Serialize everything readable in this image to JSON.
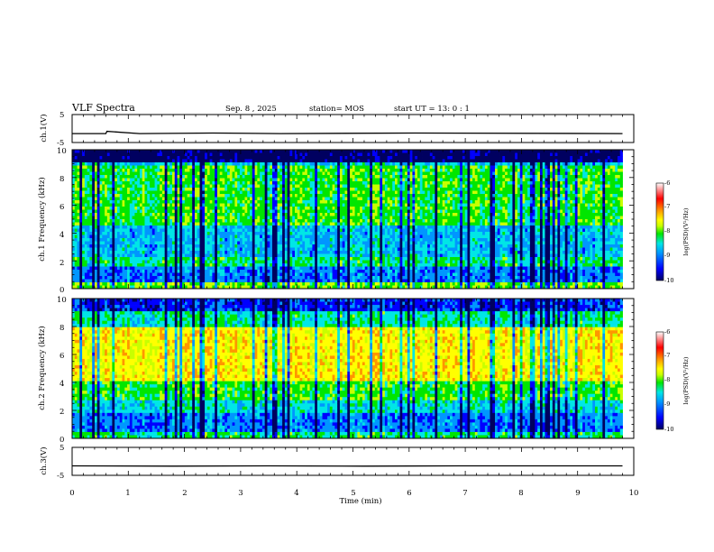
{
  "header": {
    "title": "VLF Spectra",
    "date": "Sep. 8 , 2025",
    "station": "station= MOS",
    "start": "start UT = 13: 0 : 1"
  },
  "chart_data": [
    {
      "type": "line",
      "ylabel": "ch.1(V)",
      "ylim": [
        -5,
        5
      ],
      "yticks": [
        "5",
        "-5"
      ],
      "x": [
        0,
        0.6,
        0.62,
        1.2,
        2.5,
        3.7,
        6.1,
        9.8
      ],
      "values": [
        -1.8,
        -1.8,
        -1.0,
        -1.8,
        -1.6,
        -1.8,
        -1.6,
        -1.8
      ],
      "color": "#000000"
    },
    {
      "type": "heatmap",
      "ylabel": "ch.1 Frequency (kHz)",
      "ylim": [
        0,
        10
      ],
      "yticks": [
        "0",
        "2",
        "4",
        "6",
        "8",
        "10"
      ],
      "colorbar": {
        "label": "log(PSD)(V²/Hz)",
        "ticks": [
          "-6",
          "-7",
          "-8",
          "-9",
          "-10"
        ]
      },
      "x_extent_min": [
        0,
        9.8
      ]
    },
    {
      "type": "heatmap",
      "ylabel": "ch.2 Frequency (kHz)",
      "ylim": [
        0,
        10
      ],
      "yticks": [
        "0",
        "2",
        "4",
        "6",
        "8",
        "10"
      ],
      "colorbar": {
        "label": "log(PSD)(V²/Hz)",
        "ticks": [
          "-6",
          "-7",
          "-8",
          "-9",
          "-10"
        ]
      },
      "x_extent_min": [
        0,
        9.8
      ]
    },
    {
      "type": "line",
      "ylabel": "ch.3(V)",
      "ylim": [
        -5,
        5
      ],
      "yticks": [
        "5",
        "-5"
      ],
      "x": [
        0,
        1.8,
        3.5,
        5.2,
        7.0,
        9.8
      ],
      "values": [
        -1.6,
        -1.7,
        -1.6,
        -1.7,
        -1.6,
        -1.6
      ],
      "color": "#000000"
    }
  ],
  "xaxis": {
    "label": "Time (min)",
    "range": [
      0,
      10
    ],
    "ticks": [
      "0",
      "1",
      "2",
      "3",
      "4",
      "5",
      "6",
      "7",
      "8",
      "9",
      "10"
    ]
  },
  "colormap": [
    "#000060",
    "#0000ff",
    "#0096ff",
    "#00e6e6",
    "#00e600",
    "#c8ff00",
    "#ffff00",
    "#ff9600",
    "#ff0000",
    "#ffffff"
  ]
}
